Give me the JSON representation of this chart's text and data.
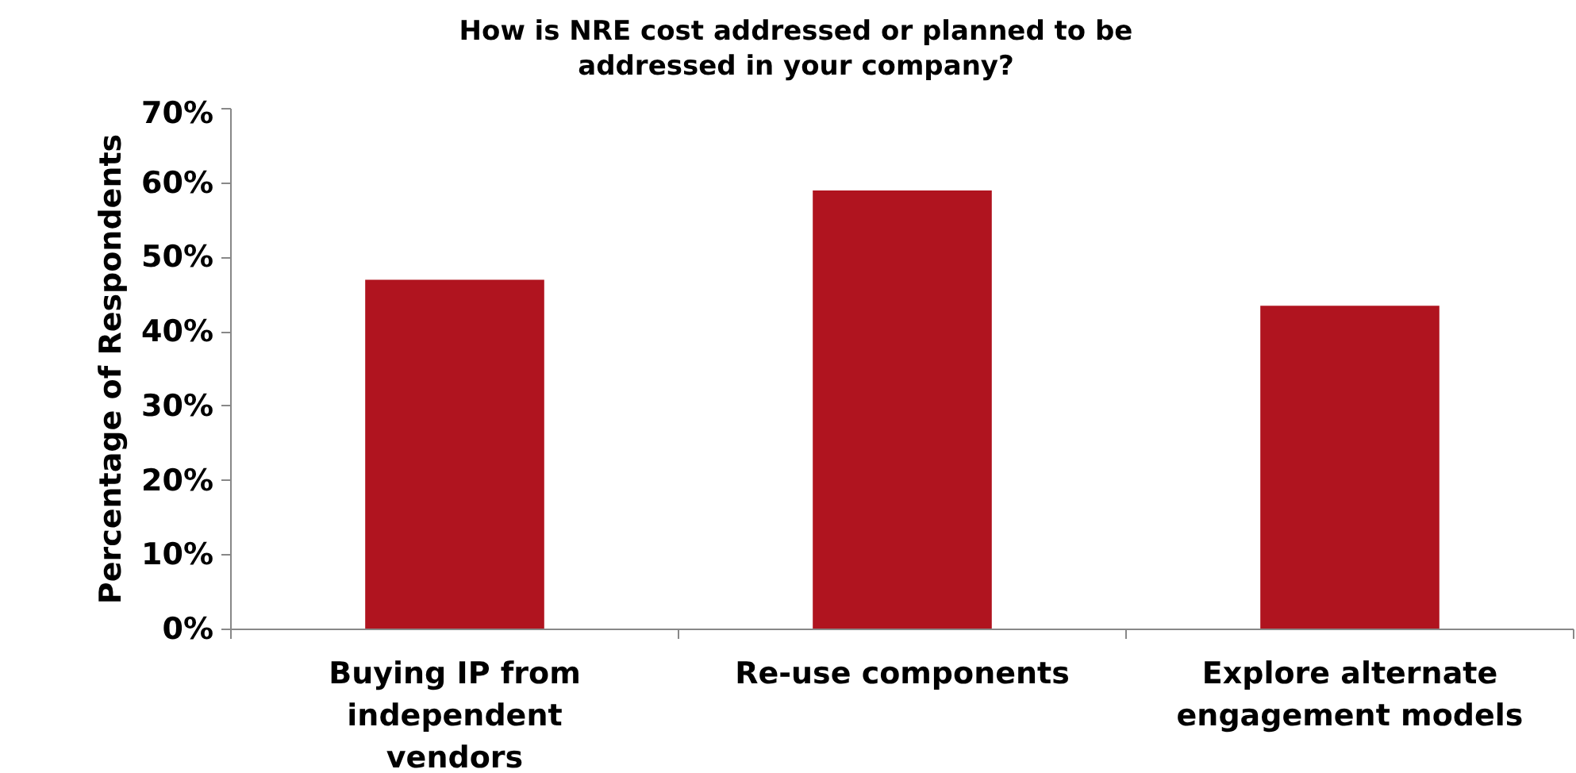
{
  "chart_data": {
    "type": "bar",
    "title": "How is NRE cost addressed or planned to be addressed in your company?",
    "ylabel": "Percentage of Respondents",
    "categories": [
      "Buying IP from independent vendors",
      "Re-use components",
      "Explore alternate engagement models"
    ],
    "values": [
      47,
      59,
      43.5
    ],
    "color": "#b0141f",
    "ylim": [
      0,
      70
    ],
    "yticks": [
      {
        "value": 0,
        "label": "0%"
      },
      {
        "value": 10,
        "label": "10%"
      },
      {
        "value": 20,
        "label": "20%"
      },
      {
        "value": 30,
        "label": "30%"
      },
      {
        "value": 40,
        "label": "40%"
      },
      {
        "value": 50,
        "label": "50%"
      },
      {
        "value": 60,
        "label": "60%"
      },
      {
        "value": 70,
        "label": "70%"
      }
    ],
    "grid": false
  }
}
